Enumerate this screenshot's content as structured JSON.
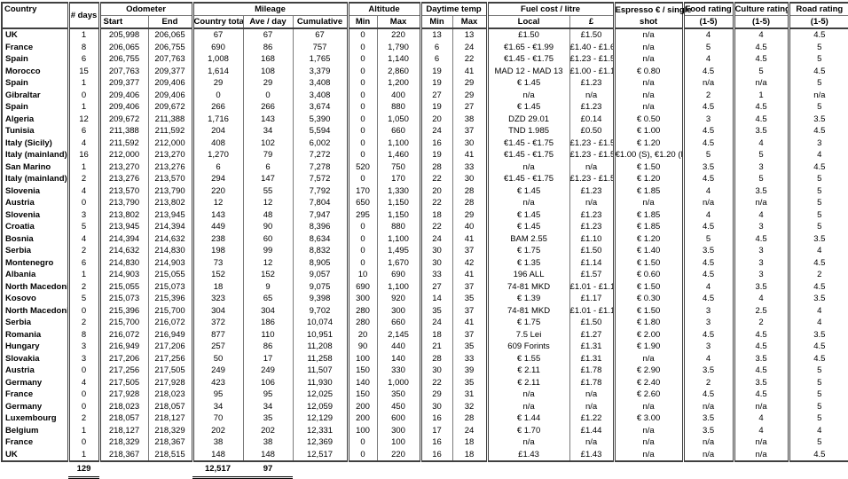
{
  "table": {
    "header": {
      "country": "Country",
      "days": "# days",
      "odometer": "Odometer",
      "start": "Start",
      "end": "End",
      "mileage": "Mileage",
      "country_total": "Country total",
      "ave_day": "Ave / day",
      "cumulative": "Cumulative",
      "altitude": "Altitude",
      "min": "Min",
      "max": "Max",
      "daytime_temp": "Daytime temp",
      "fuel": "Fuel cost / litre",
      "local": "Local",
      "pound": "£",
      "espresso_line1": "Espresso € / single",
      "espresso_line2": "shot",
      "food_rating": "Food rating",
      "culture_rating": "Culture rating",
      "road_rating": "Road rating",
      "scale": "(1-5)"
    },
    "columns": [
      "country",
      "days",
      "odo_start",
      "odo_end",
      "mileage_total",
      "mileage_ave",
      "mileage_cum",
      "alt_min",
      "alt_max",
      "temp_min",
      "temp_max",
      "fuel_local",
      "fuel_gbp",
      "espresso",
      "food",
      "culture",
      "road"
    ],
    "rows": [
      [
        "UK",
        "1",
        "205,998",
        "206,065",
        "67",
        "67",
        "67",
        "0",
        "220",
        "13",
        "13",
        "£1.50",
        "£1.50",
        "n/a",
        "4",
        "4",
        "4.5"
      ],
      [
        "France",
        "8",
        "206,065",
        "206,755",
        "690",
        "86",
        "757",
        "0",
        "1,790",
        "6",
        "24",
        "€1.65 - €1.99",
        "£1.40 - £1.69",
        "n/a",
        "5",
        "4.5",
        "5"
      ],
      [
        "Spain",
        "6",
        "206,755",
        "207,763",
        "1,008",
        "168",
        "1,765",
        "0",
        "1,140",
        "6",
        "22",
        "€1.45 - €1.75",
        "£1.23 - £1.50",
        "n/a",
        "4",
        "4.5",
        "5"
      ],
      [
        "Morocco",
        "15",
        "207,763",
        "209,377",
        "1,614",
        "108",
        "3,379",
        "0",
        "2,860",
        "19",
        "41",
        "MAD 12 - MAD 13",
        "£1.00 - £1.10",
        "€ 0.80",
        "4.5",
        "5",
        "4.5"
      ],
      [
        "Spain",
        "1",
        "209,377",
        "209,406",
        "29",
        "29",
        "3,408",
        "0",
        "1,200",
        "19",
        "29",
        "€ 1.45",
        "£1.23",
        "n/a",
        "n/a",
        "n/a",
        "5"
      ],
      [
        "Gibraltar",
        "0",
        "209,406",
        "209,406",
        "0",
        "0",
        "3,408",
        "0",
        "400",
        "27",
        "29",
        "n/a",
        "n/a",
        "n/a",
        "2",
        "1",
        "n/a"
      ],
      [
        "Spain",
        "1",
        "209,406",
        "209,672",
        "266",
        "266",
        "3,674",
        "0",
        "880",
        "19",
        "27",
        "€ 1.45",
        "£1.23",
        "n/a",
        "4.5",
        "4.5",
        "5"
      ],
      [
        "Algeria",
        "12",
        "209,672",
        "211,388",
        "1,716",
        "143",
        "5,390",
        "0",
        "1,050",
        "20",
        "38",
        "DZD 29.01",
        "£0.14",
        "€ 0.50",
        "3",
        "4.5",
        "3.5"
      ],
      [
        "Tunisia",
        "6",
        "211,388",
        "211,592",
        "204",
        "34",
        "5,594",
        "0",
        "660",
        "24",
        "37",
        "TND 1.985",
        "£0.50",
        "€ 1.00",
        "4.5",
        "3.5",
        "4.5"
      ],
      [
        "Italy (Sicily)",
        "4",
        "211,592",
        "212,000",
        "408",
        "102",
        "6,002",
        "0",
        "1,100",
        "16",
        "30",
        "€1.45 - €1.75",
        "£1.23 - £1.50",
        "€ 1.20",
        "4.5",
        "4",
        "3"
      ],
      [
        "Italy (mainland)",
        "16",
        "212,000",
        "213,270",
        "1,270",
        "79",
        "7,272",
        "0",
        "1,460",
        "19",
        "41",
        "€1.45 - €1.75",
        "£1.23 - £1.50",
        "€1.00 (S), €1.20 (N)",
        "5",
        "5",
        "4"
      ],
      [
        "San Marino",
        "1",
        "213,270",
        "213,276",
        "6",
        "6",
        "7,278",
        "520",
        "750",
        "28",
        "33",
        "n/a",
        "n/a",
        "€ 1.50",
        "3.5",
        "3",
        "4.5"
      ],
      [
        "Italy (mainland)",
        "2",
        "213,276",
        "213,570",
        "294",
        "147",
        "7,572",
        "0",
        "170",
        "22",
        "30",
        "€1.45 - €1.75",
        "£1.23 - £1.50",
        "€ 1.20",
        "4.5",
        "5",
        "5"
      ],
      [
        "Slovenia",
        "4",
        "213,570",
        "213,790",
        "220",
        "55",
        "7,792",
        "170",
        "1,330",
        "20",
        "28",
        "€ 1.45",
        "£1.23",
        "€ 1.85",
        "4",
        "3.5",
        "5"
      ],
      [
        "Austria",
        "0",
        "213,790",
        "213,802",
        "12",
        "12",
        "7,804",
        "650",
        "1,150",
        "22",
        "28",
        "n/a",
        "n/a",
        "n/a",
        "n/a",
        "n/a",
        "5"
      ],
      [
        "Slovenia",
        "3",
        "213,802",
        "213,945",
        "143",
        "48",
        "7,947",
        "295",
        "1,150",
        "18",
        "29",
        "€ 1.45",
        "£1.23",
        "€ 1.85",
        "4",
        "4",
        "5"
      ],
      [
        "Croatia",
        "5",
        "213,945",
        "214,394",
        "449",
        "90",
        "8,396",
        "0",
        "880",
        "22",
        "40",
        "€ 1.45",
        "£1.23",
        "€ 1.85",
        "4.5",
        "3",
        "5"
      ],
      [
        "Bosnia",
        "4",
        "214,394",
        "214,632",
        "238",
        "60",
        "8,634",
        "0",
        "1,100",
        "24",
        "41",
        "BAM 2.55",
        "£1.10",
        "€ 1.20",
        "5",
        "4.5",
        "3.5"
      ],
      [
        "Serbia",
        "2",
        "214,632",
        "214,830",
        "198",
        "99",
        "8,832",
        "0",
        "1,495",
        "30",
        "37",
        "€ 1.75",
        "£1.50",
        "€ 1.40",
        "3.5",
        "3",
        "4"
      ],
      [
        "Montenegro",
        "6",
        "214,830",
        "214,903",
        "73",
        "12",
        "8,905",
        "0",
        "1,670",
        "30",
        "42",
        "€ 1.35",
        "£1.14",
        "€ 1.50",
        "4.5",
        "3",
        "4.5"
      ],
      [
        "Albania",
        "1",
        "214,903",
        "215,055",
        "152",
        "152",
        "9,057",
        "10",
        "690",
        "33",
        "41",
        "196 ALL",
        "£1.57",
        "€ 0.60",
        "4.5",
        "3",
        "2"
      ],
      [
        "North Macedonia",
        "2",
        "215,055",
        "215,073",
        "18",
        "9",
        "9,075",
        "690",
        "1,100",
        "27",
        "37",
        "74-81 MKD",
        "£1.01 - £1.11",
        "€ 1.50",
        "4",
        "3.5",
        "4.5"
      ],
      [
        "Kosovo",
        "5",
        "215,073",
        "215,396",
        "323",
        "65",
        "9,398",
        "300",
        "920",
        "14",
        "35",
        "€ 1.39",
        "£1.17",
        "€ 0.30",
        "4.5",
        "4",
        "3.5"
      ],
      [
        "North Macedonia",
        "0",
        "215,396",
        "215,700",
        "304",
        "304",
        "9,702",
        "280",
        "300",
        "35",
        "37",
        "74-81 MKD",
        "£1.01 - £1.11",
        "€ 1.50",
        "3",
        "2.5",
        "4"
      ],
      [
        "Serbia",
        "2",
        "215,700",
        "216,072",
        "372",
        "186",
        "10,074",
        "280",
        "660",
        "24",
        "41",
        "€ 1.75",
        "£1.50",
        "€ 1.80",
        "3",
        "2",
        "4"
      ],
      [
        "Romania",
        "8",
        "216,072",
        "216,949",
        "877",
        "110",
        "10,951",
        "20",
        "2,145",
        "18",
        "37",
        "7.5 Lei",
        "£1.27",
        "€ 2.00",
        "4.5",
        "4.5",
        "3.5"
      ],
      [
        "Hungary",
        "3",
        "216,949",
        "217,206",
        "257",
        "86",
        "11,208",
        "90",
        "440",
        "21",
        "35",
        "609 Forints",
        "£1.31",
        "€ 1.90",
        "3",
        "4.5",
        "4.5"
      ],
      [
        "Slovakia",
        "3",
        "217,206",
        "217,256",
        "50",
        "17",
        "11,258",
        "100",
        "140",
        "28",
        "33",
        "€ 1.55",
        "£1.31",
        "n/a",
        "4",
        "3.5",
        "4.5"
      ],
      [
        "Austria",
        "0",
        "217,256",
        "217,505",
        "249",
        "249",
        "11,507",
        "150",
        "330",
        "30",
        "39",
        "€ 2.11",
        "£1.78",
        "€ 2.90",
        "3.5",
        "4.5",
        "5"
      ],
      [
        "Germany",
        "4",
        "217,505",
        "217,928",
        "423",
        "106",
        "11,930",
        "140",
        "1,000",
        "22",
        "35",
        "€ 2.11",
        "£1.78",
        "€ 2.40",
        "2",
        "3.5",
        "5"
      ],
      [
        "France",
        "0",
        "217,928",
        "218,023",
        "95",
        "95",
        "12,025",
        "150",
        "350",
        "29",
        "31",
        "n/a",
        "n/a",
        "€ 2.60",
        "4.5",
        "4.5",
        "5"
      ],
      [
        "Germany",
        "0",
        "218,023",
        "218,057",
        "34",
        "34",
        "12,059",
        "200",
        "450",
        "30",
        "32",
        "n/a",
        "n/a",
        "n/a",
        "n/a",
        "n/a",
        "5"
      ],
      [
        "Luxembourg",
        "2",
        "218,057",
        "218,127",
        "70",
        "35",
        "12,129",
        "200",
        "600",
        "16",
        "28",
        "€ 1.44",
        "£1.22",
        "€ 3.00",
        "3.5",
        "4",
        "5"
      ],
      [
        "Belgium",
        "1",
        "218,127",
        "218,329",
        "202",
        "202",
        "12,331",
        "100",
        "300",
        "17",
        "24",
        "€ 1.70",
        "£1.44",
        "n/a",
        "3.5",
        "4",
        "4"
      ],
      [
        "France",
        "0",
        "218,329",
        "218,367",
        "38",
        "38",
        "12,369",
        "0",
        "100",
        "16",
        "18",
        "n/a",
        "n/a",
        "n/a",
        "n/a",
        "n/a",
        "5"
      ],
      [
        "UK",
        "1",
        "218,367",
        "218,515",
        "148",
        "148",
        "12,517",
        "0",
        "220",
        "16",
        "18",
        "£1.43",
        "£1.43",
        "n/a",
        "n/a",
        "n/a",
        "4.5"
      ]
    ],
    "totals": {
      "days": "129",
      "mileage_total": "12,517",
      "ave_per_day": "97"
    }
  }
}
